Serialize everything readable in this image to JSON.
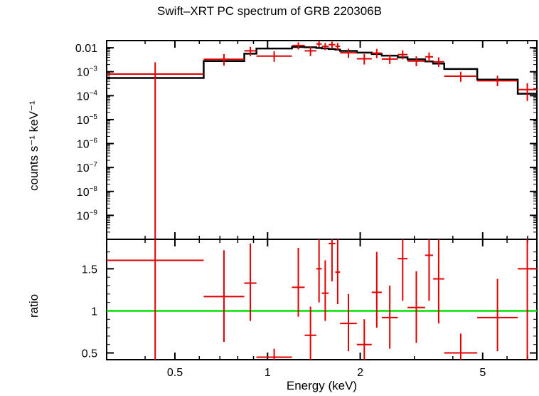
{
  "chart_data": [
    {
      "type": "scatter",
      "panel": "spectrum",
      "title": "Swift–XRT PC spectrum of GRB 220306B",
      "xlabel": "Energy (keV)",
      "ylabel": "counts s⁻¹ keV⁻¹",
      "xscale": "log",
      "yscale": "log",
      "xlim": [
        0.3,
        7.5
      ],
      "ylim": [
        1e-10,
        0.02
      ],
      "x_ticks": [
        {
          "v": 0.5,
          "label": "0.5"
        },
        {
          "v": 1,
          "label": "1"
        },
        {
          "v": 2,
          "label": "2"
        },
        {
          "v": 5,
          "label": "5"
        }
      ],
      "y_ticks": [
        {
          "v": 0.01,
          "base": "0.01",
          "exp": ""
        },
        {
          "v": 0.001,
          "base": "10",
          "exp": "−3"
        },
        {
          "v": 0.0001,
          "base": "10",
          "exp": "−4"
        },
        {
          "v": 1e-05,
          "base": "10",
          "exp": "−5"
        },
        {
          "v": 1e-06,
          "base": "10",
          "exp": "−6"
        },
        {
          "v": 1e-07,
          "base": "10",
          "exp": "−7"
        },
        {
          "v": 1e-08,
          "base": "10",
          "exp": "−8"
        },
        {
          "v": 1e-09,
          "base": "10",
          "exp": "−9"
        }
      ],
      "data_color": "#e00000",
      "model_color": "#000000",
      "data": [
        {
          "xlo": 0.3,
          "xhi": 0.62,
          "y": 0.0008,
          "ylo": 1e-10,
          "yhi": 0.0025
        },
        {
          "xlo": 0.62,
          "xhi": 0.84,
          "y": 0.0033,
          "ylo": 0.0018,
          "yhi": 0.0055
        },
        {
          "xlo": 0.84,
          "xhi": 0.92,
          "y": 0.0075,
          "ylo": 0.0045,
          "yhi": 0.011
        },
        {
          "xlo": 0.92,
          "xhi": 1.2,
          "y": 0.0045,
          "ylo": 0.0026,
          "yhi": 0.0072
        },
        {
          "xlo": 1.2,
          "xhi": 1.32,
          "y": 0.0125,
          "ylo": 0.0085,
          "yhi": 0.017
        },
        {
          "xlo": 1.32,
          "xhi": 1.44,
          "y": 0.0075,
          "ylo": 0.0045,
          "yhi": 0.011
        },
        {
          "xlo": 1.44,
          "xhi": 1.5,
          "y": 0.0145,
          "ylo": 0.0105,
          "yhi": 0.019
        },
        {
          "xlo": 1.5,
          "xhi": 1.58,
          "y": 0.0115,
          "ylo": 0.008,
          "yhi": 0.016
        },
        {
          "xlo": 1.58,
          "xhi": 1.66,
          "y": 0.0135,
          "ylo": 0.0095,
          "yhi": 0.018
        },
        {
          "xlo": 1.66,
          "xhi": 1.72,
          "y": 0.0115,
          "ylo": 0.008,
          "yhi": 0.016
        },
        {
          "xlo": 1.72,
          "xhi": 1.95,
          "y": 0.0062,
          "ylo": 0.0038,
          "yhi": 0.0092
        },
        {
          "xlo": 1.95,
          "xhi": 2.18,
          "y": 0.0035,
          "ylo": 0.002,
          "yhi": 0.0055
        },
        {
          "xlo": 2.18,
          "xhi": 2.35,
          "y": 0.006,
          "ylo": 0.0037,
          "yhi": 0.009
        },
        {
          "xlo": 2.35,
          "xhi": 2.65,
          "y": 0.0034,
          "ylo": 0.0021,
          "yhi": 0.0052
        },
        {
          "xlo": 2.65,
          "xhi": 2.85,
          "y": 0.0052,
          "ylo": 0.0033,
          "yhi": 0.0078
        },
        {
          "xlo": 2.85,
          "xhi": 3.25,
          "y": 0.0028,
          "ylo": 0.0017,
          "yhi": 0.0044
        },
        {
          "xlo": 3.25,
          "xhi": 3.45,
          "y": 0.0042,
          "ylo": 0.0026,
          "yhi": 0.0064
        },
        {
          "xlo": 3.45,
          "xhi": 3.75,
          "y": 0.0026,
          "ylo": 0.0016,
          "yhi": 0.004
        },
        {
          "xlo": 3.75,
          "xhi": 4.8,
          "y": 0.00065,
          "ylo": 0.00038,
          "yhi": 0.001
        },
        {
          "xlo": 4.8,
          "xhi": 6.5,
          "y": 0.00042,
          "ylo": 0.00025,
          "yhi": 0.00068
        },
        {
          "xlo": 6.5,
          "xhi": 7.5,
          "y": 0.00018,
          "ylo": 6e-05,
          "yhi": 0.00033
        }
      ],
      "model": [
        {
          "xlo": 0.3,
          "xhi": 0.62,
          "y": 0.00055
        },
        {
          "xlo": 0.62,
          "xhi": 0.84,
          "y": 0.0028
        },
        {
          "xlo": 0.84,
          "xhi": 0.92,
          "y": 0.0057
        },
        {
          "xlo": 0.92,
          "xhi": 1.2,
          "y": 0.0093
        },
        {
          "xlo": 1.2,
          "xhi": 1.32,
          "y": 0.0108
        },
        {
          "xlo": 1.32,
          "xhi": 1.44,
          "y": 0.0105
        },
        {
          "xlo": 1.44,
          "xhi": 1.5,
          "y": 0.0098
        },
        {
          "xlo": 1.5,
          "xhi": 1.58,
          "y": 0.0094
        },
        {
          "xlo": 1.58,
          "xhi": 1.66,
          "y": 0.0089
        },
        {
          "xlo": 1.66,
          "xhi": 1.72,
          "y": 0.0084
        },
        {
          "xlo": 1.72,
          "xhi": 1.95,
          "y": 0.0074
        },
        {
          "xlo": 1.95,
          "xhi": 2.18,
          "y": 0.0063
        },
        {
          "xlo": 2.18,
          "xhi": 2.35,
          "y": 0.0055
        },
        {
          "xlo": 2.35,
          "xhi": 2.65,
          "y": 0.0047
        },
        {
          "xlo": 2.65,
          "xhi": 2.85,
          "y": 0.004
        },
        {
          "xlo": 2.85,
          "xhi": 3.25,
          "y": 0.0033
        },
        {
          "xlo": 3.25,
          "xhi": 3.45,
          "y": 0.0027
        },
        {
          "xlo": 3.45,
          "xhi": 3.75,
          "y": 0.0022
        },
        {
          "xlo": 3.75,
          "xhi": 4.8,
          "y": 0.0013
        },
        {
          "xlo": 4.8,
          "xhi": 6.5,
          "y": 0.00047
        },
        {
          "xlo": 6.5,
          "xhi": 7.5,
          "y": 0.00012
        }
      ]
    },
    {
      "type": "scatter",
      "panel": "ratio",
      "xlabel": "Energy (keV)",
      "ylabel": "ratio",
      "xscale": "log",
      "xlim": [
        0.3,
        7.5
      ],
      "ylim": [
        0.42,
        1.85
      ],
      "x_ticks": [
        {
          "v": 0.5,
          "label": "0.5"
        },
        {
          "v": 1,
          "label": "1"
        },
        {
          "v": 2,
          "label": "2"
        },
        {
          "v": 5,
          "label": "5"
        }
      ],
      "y_ticks": [
        {
          "v": 0.5,
          "label": "0.5"
        },
        {
          "v": 1,
          "label": "1"
        },
        {
          "v": 1.5,
          "label": "1.5"
        }
      ],
      "reference_line": {
        "y": 1,
        "color": "#00e000"
      },
      "data_color": "#e00000",
      "data": [
        {
          "xlo": 0.3,
          "xhi": 0.62,
          "y": 1.6,
          "ylo": 0.42,
          "yhi": 1.85
        },
        {
          "xlo": 0.62,
          "xhi": 0.84,
          "y": 1.17,
          "ylo": 0.63,
          "yhi": 1.72
        },
        {
          "xlo": 0.84,
          "xhi": 0.92,
          "y": 1.33,
          "ylo": 0.88,
          "yhi": 1.8
        },
        {
          "xlo": 0.92,
          "xhi": 1.2,
          "y": 0.45,
          "ylo": 0.42,
          "yhi": 0.55
        },
        {
          "xlo": 1.2,
          "xhi": 1.32,
          "y": 1.28,
          "ylo": 0.93,
          "yhi": 1.75
        },
        {
          "xlo": 1.32,
          "xhi": 1.44,
          "y": 0.71,
          "ylo": 0.42,
          "yhi": 1.05
        },
        {
          "xlo": 1.44,
          "xhi": 1.5,
          "y": 1.5,
          "ylo": 1.1,
          "yhi": 1.85
        },
        {
          "xlo": 1.5,
          "xhi": 1.58,
          "y": 1.21,
          "ylo": 0.88,
          "yhi": 1.6
        },
        {
          "xlo": 1.58,
          "xhi": 1.66,
          "y": 1.8,
          "ylo": 1.35,
          "yhi": 1.85
        },
        {
          "xlo": 1.66,
          "xhi": 1.72,
          "y": 1.46,
          "ylo": 1.08,
          "yhi": 1.85
        },
        {
          "xlo": 1.72,
          "xhi": 1.95,
          "y": 0.85,
          "ylo": 0.52,
          "yhi": 1.2
        },
        {
          "xlo": 1.95,
          "xhi": 2.18,
          "y": 0.6,
          "ylo": 0.42,
          "yhi": 0.9
        },
        {
          "xlo": 2.18,
          "xhi": 2.35,
          "y": 1.22,
          "ylo": 0.8,
          "yhi": 1.7
        },
        {
          "xlo": 2.35,
          "xhi": 2.65,
          "y": 0.92,
          "ylo": 0.55,
          "yhi": 1.3
        },
        {
          "xlo": 2.65,
          "xhi": 2.85,
          "y": 1.62,
          "ylo": 1.12,
          "yhi": 1.85
        },
        {
          "xlo": 2.85,
          "xhi": 3.25,
          "y": 1.04,
          "ylo": 0.62,
          "yhi": 1.47
        },
        {
          "xlo": 3.25,
          "xhi": 3.45,
          "y": 1.66,
          "ylo": 1.12,
          "yhi": 1.85
        },
        {
          "xlo": 3.45,
          "xhi": 3.75,
          "y": 1.38,
          "ylo": 0.85,
          "yhi": 1.85
        },
        {
          "xlo": 3.75,
          "xhi": 4.8,
          "y": 0.5,
          "ylo": 0.42,
          "yhi": 0.73
        },
        {
          "xlo": 4.8,
          "xhi": 6.5,
          "y": 0.92,
          "ylo": 0.52,
          "yhi": 1.38
        },
        {
          "xlo": 6.5,
          "xhi": 7.5,
          "y": 1.5,
          "ylo": 0.42,
          "yhi": 1.85
        }
      ]
    }
  ]
}
